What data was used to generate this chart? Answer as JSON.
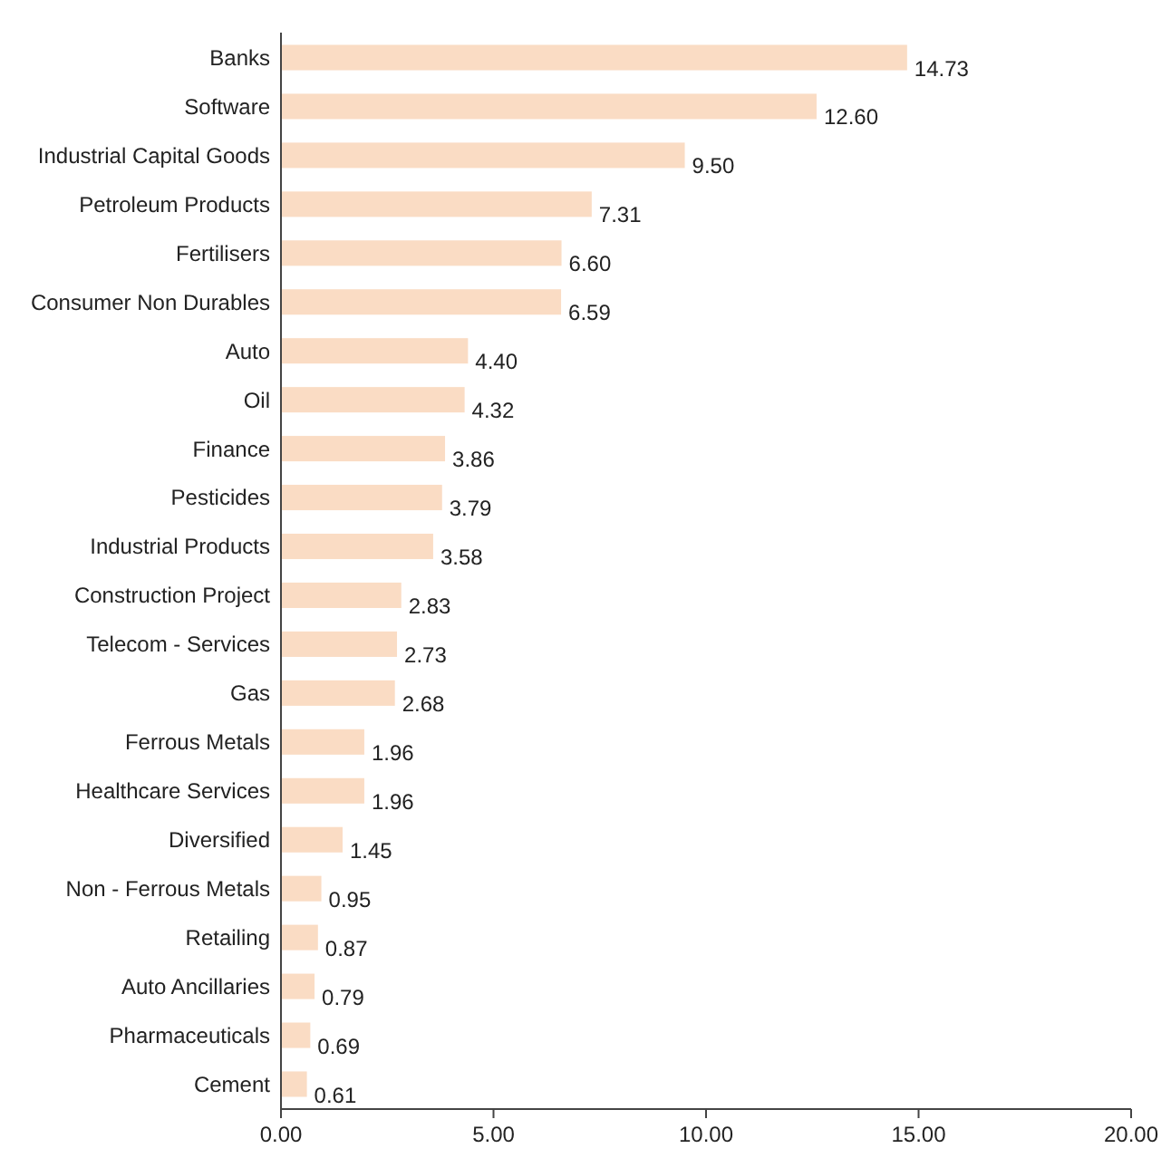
{
  "chart_data": {
    "type": "bar",
    "orientation": "horizontal",
    "data_labels": true,
    "categories": [
      "Banks",
      "Software",
      "Industrial Capital Goods",
      "Petroleum Products",
      "Fertilisers",
      "Consumer Non Durables",
      "Auto",
      "Oil",
      "Finance",
      "Pesticides",
      "Industrial Products",
      "Construction Project",
      "Telecom - Services",
      "Gas",
      "Ferrous Metals",
      "Healthcare Services",
      "Diversified",
      "Non - Ferrous Metals",
      "Retailing",
      "Auto Ancillaries",
      "Pharmaceuticals",
      "Cement"
    ],
    "values": [
      14.73,
      12.6,
      9.5,
      7.31,
      6.6,
      6.59,
      4.4,
      4.32,
      3.86,
      3.79,
      3.58,
      2.83,
      2.73,
      2.68,
      1.96,
      1.96,
      1.45,
      0.95,
      0.87,
      0.79,
      0.69,
      0.61
    ],
    "value_labels": [
      "14.73",
      "12.60",
      "9.50",
      "7.31",
      "6.60",
      "6.59",
      "4.40",
      "4.32",
      "3.86",
      "3.79",
      "3.58",
      "2.83",
      "2.73",
      "2.68",
      "1.96",
      "1.96",
      "1.45",
      "0.95",
      "0.87",
      "0.79",
      "0.69",
      "0.61"
    ],
    "color": "#fadcc4",
    "xlim": [
      0,
      20
    ],
    "xticks": [
      {
        "value": 0,
        "label": "0.00"
      },
      {
        "value": 5,
        "label": "5.00"
      },
      {
        "value": 10,
        "label": "10.00"
      },
      {
        "value": 15,
        "label": "15.00"
      },
      {
        "value": 20,
        "label": "20.00"
      }
    ],
    "grid": false
  }
}
